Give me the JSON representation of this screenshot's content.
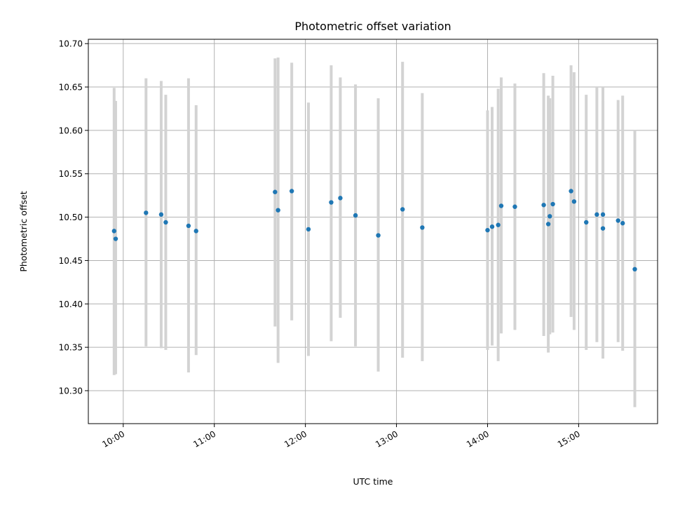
{
  "chart_data": {
    "type": "scatter",
    "title": "Photometric offset variation",
    "xlabel": "UTC time",
    "ylabel": "Photometric offset",
    "x_unit": "UTC time of day (HH:MM)",
    "xlim": [
      "09:37",
      "15:52"
    ],
    "ylim": [
      10.262,
      10.705
    ],
    "x_ticks": [
      "10:00",
      "11:00",
      "12:00",
      "13:00",
      "14:00",
      "15:00"
    ],
    "y_ticks": [
      "10.30",
      "10.35",
      "10.40",
      "10.45",
      "10.50",
      "10.55",
      "10.60",
      "10.65",
      "10.70"
    ],
    "grid": true,
    "marker_color": "#1f77b4",
    "errorbar_color": "#d3d3d3",
    "points": [
      {
        "t": "09:54",
        "y": 10.484,
        "lo": 10.318,
        "hi": 10.649
      },
      {
        "t": "09:55",
        "y": 10.475,
        "lo": 10.319,
        "hi": 10.634
      },
      {
        "t": "10:15",
        "y": 10.505,
        "lo": 10.351,
        "hi": 10.66
      },
      {
        "t": "10:25",
        "y": 10.503,
        "lo": 10.349,
        "hi": 10.657
      },
      {
        "t": "10:28",
        "y": 10.494,
        "lo": 10.347,
        "hi": 10.641
      },
      {
        "t": "10:43",
        "y": 10.49,
        "lo": 10.321,
        "hi": 10.66
      },
      {
        "t": "10:48",
        "y": 10.484,
        "lo": 10.341,
        "hi": 10.629
      },
      {
        "t": "11:40",
        "y": 10.529,
        "lo": 10.374,
        "hi": 10.683
      },
      {
        "t": "11:42",
        "y": 10.508,
        "lo": 10.332,
        "hi": 10.684
      },
      {
        "t": "11:51",
        "y": 10.53,
        "lo": 10.381,
        "hi": 10.678
      },
      {
        "t": "12:02",
        "y": 10.486,
        "lo": 10.34,
        "hi": 10.632
      },
      {
        "t": "12:17",
        "y": 10.517,
        "lo": 10.357,
        "hi": 10.675
      },
      {
        "t": "12:23",
        "y": 10.522,
        "lo": 10.384,
        "hi": 10.661
      },
      {
        "t": "12:33",
        "y": 10.502,
        "lo": 10.351,
        "hi": 10.653
      },
      {
        "t": "12:48",
        "y": 10.479,
        "lo": 10.322,
        "hi": 10.637
      },
      {
        "t": "13:04",
        "y": 10.509,
        "lo": 10.338,
        "hi": 10.679
      },
      {
        "t": "13:17",
        "y": 10.488,
        "lo": 10.334,
        "hi": 10.643
      },
      {
        "t": "14:00",
        "y": 10.485,
        "lo": 10.347,
        "hi": 10.623
      },
      {
        "t": "14:03",
        "y": 10.489,
        "lo": 10.352,
        "hi": 10.627
      },
      {
        "t": "14:07",
        "y": 10.491,
        "lo": 10.334,
        "hi": 10.648
      },
      {
        "t": "14:09",
        "y": 10.513,
        "lo": 10.366,
        "hi": 10.661
      },
      {
        "t": "14:18",
        "y": 10.512,
        "lo": 10.37,
        "hi": 10.654
      },
      {
        "t": "14:37",
        "y": 10.514,
        "lo": 10.363,
        "hi": 10.666
      },
      {
        "t": "14:40",
        "y": 10.492,
        "lo": 10.344,
        "hi": 10.64
      },
      {
        "t": "14:41",
        "y": 10.501,
        "lo": 10.365,
        "hi": 10.637
      },
      {
        "t": "14:43",
        "y": 10.515,
        "lo": 10.367,
        "hi": 10.663
      },
      {
        "t": "14:55",
        "y": 10.53,
        "lo": 10.385,
        "hi": 10.675
      },
      {
        "t": "14:57",
        "y": 10.518,
        "lo": 10.37,
        "hi": 10.667
      },
      {
        "t": "15:05",
        "y": 10.494,
        "lo": 10.347,
        "hi": 10.641
      },
      {
        "t": "15:12",
        "y": 10.503,
        "lo": 10.356,
        "hi": 10.65
      },
      {
        "t": "15:16",
        "y": 10.503,
        "lo": 10.357,
        "hi": 10.65
      },
      {
        "t": "15:16",
        "y": 10.487,
        "lo": 10.337,
        "hi": 10.634
      },
      {
        "t": "15:26",
        "y": 10.496,
        "lo": 10.356,
        "hi": 10.635
      },
      {
        "t": "15:29",
        "y": 10.493,
        "lo": 10.346,
        "hi": 10.64
      },
      {
        "t": "15:37",
        "y": 10.44,
        "lo": 10.281,
        "hi": 10.6
      }
    ]
  }
}
